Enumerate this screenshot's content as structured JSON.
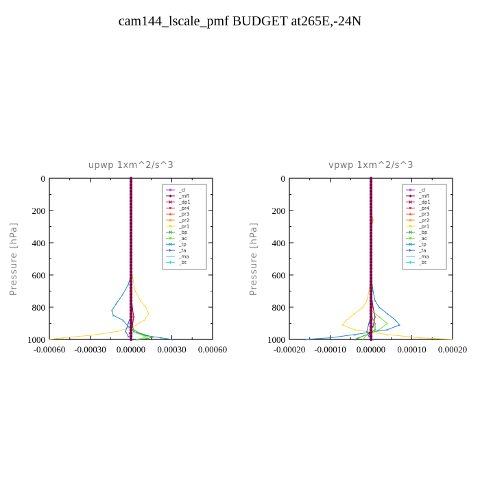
{
  "title": "cam144_lscale_pmf  BUDGET at265E,-24N",
  "colors": {
    "_cl": "#9b59d0",
    "_mfl": "#7a0a4a",
    "_dp1": "#b0004a",
    "_pr4": "#d8305a",
    "_pr3": "#ff5a3c",
    "_pr2": "#ffa020",
    "_pr1": "#ffd23a",
    "_bp": "#30a830",
    "_ac": "#70e040",
    "_tp": "#2288cc",
    "_ta": "#3366dd",
    "_ma": "#44bbdd",
    "_bt": "#22dddd"
  },
  "legend_items": [
    "_cl",
    "_mfl",
    "_dp1",
    "_pr4",
    "_pr3",
    "_pr2",
    "_pr1",
    "_bp",
    "_ac",
    "_tp",
    "_ta",
    "_ma",
    "_bt"
  ],
  "chart_data": [
    {
      "type": "line",
      "title": "upwp   1xm^2/s^3",
      "ylabel": "Pressure  [hPa]",
      "xlim": [
        -0.0006,
        0.0006
      ],
      "ylim": [
        1000,
        0
      ],
      "xticks": [
        "-0.00060",
        "-0.00030",
        "0.00000",
        "0.00030",
        "0.00060"
      ],
      "yticks": [
        "0",
        "200",
        "400",
        "600",
        "800",
        "1000"
      ],
      "legend": "top-right",
      "series": [
        {
          "name": "_pr1",
          "p": [
            600,
            700,
            760,
            800,
            840,
            880,
            920,
            950,
            975,
            990,
            1000
          ],
          "x": [
            1e-05,
            3e-05,
            7e-05,
            0.00011,
            0.00013,
            0.0001,
            2e-05,
            -0.0001,
            -0.0003,
            -0.0005,
            -0.0006
          ]
        },
        {
          "name": "_tp",
          "p": [
            600,
            660,
            720,
            780,
            820,
            850,
            880,
            920,
            950,
            975,
            990,
            1000
          ],
          "x": [
            0,
            -2e-05,
            -6e-05,
            -0.00011,
            -0.00014,
            -0.00013,
            -6e-05,
            -2e-05,
            2e-05,
            0.0001,
            0.00022,
            0.0003
          ]
        },
        {
          "name": "_bp",
          "p": [
            900,
            940,
            960,
            975,
            985,
            995,
            1000
          ],
          "x": [
            0,
            2e-05,
            6e-05,
            0.00012,
            0.00016,
            0.00012,
            5e-05
          ]
        },
        {
          "name": "_ac",
          "p": [
            900,
            940,
            960,
            975,
            985,
            1000
          ],
          "x": [
            0,
            1e-05,
            4e-05,
            9e-05,
            0.00012,
            4e-05
          ]
        },
        {
          "name": "_ta",
          "p": [
            850,
            900,
            950,
            980,
            1000
          ],
          "x": [
            0,
            -2e-05,
            -4e-05,
            -2e-05,
            1e-05
          ]
        },
        {
          "name": "_pr2",
          "p": [
            750,
            850,
            900,
            960,
            1000
          ],
          "x": [
            0,
            1e-05,
            1e-05,
            -1e-05,
            0
          ]
        },
        {
          "name": "_dp1",
          "p": [
            700,
            800,
            860,
            920,
            960,
            1000
          ],
          "x": [
            0,
            1e-05,
            2e-05,
            1e-05,
            -1e-05,
            0
          ]
        }
      ]
    },
    {
      "type": "line",
      "title": "vpwp   1xm^2/s^3",
      "ylabel": "Pressure  [hPa]",
      "xlim": [
        -0.0002,
        0.0002
      ],
      "ylim": [
        1000,
        0
      ],
      "xticks": [
        "-0.00020",
        "-0.00010",
        "0.00000",
        "0.00010",
        "0.00020"
      ],
      "yticks": [
        "0",
        "200",
        "400",
        "600",
        "800",
        "1000"
      ],
      "legend": "top-right",
      "series": [
        {
          "name": "_pr1",
          "p": [
            600,
            700,
            760,
            800,
            840,
            880,
            910,
            940,
            970,
            990,
            1000
          ],
          "x": [
            0,
            -5e-06,
            -1e-05,
            -2e-05,
            -4e-05,
            -6e-05,
            -7e-05,
            -4e-05,
            4e-05,
            0.00012,
            0.0002
          ]
        },
        {
          "name": "_tp",
          "p": [
            600,
            700,
            760,
            800,
            840,
            880,
            910,
            940,
            970,
            990,
            1000
          ],
          "x": [
            0,
            5e-06,
            1e-05,
            2e-05,
            4e-05,
            6e-05,
            7e-05,
            4e-05,
            -4e-05,
            -0.0001,
            -0.00016
          ]
        },
        {
          "name": "_bp",
          "p": [
            850,
            900,
            940,
            970,
            990,
            1000
          ],
          "x": [
            0,
            1e-05,
            1e-05,
            -1e-05,
            -3e-05,
            -4e-05
          ]
        },
        {
          "name": "_ac",
          "p": [
            820,
            860,
            900,
            940,
            970,
            1000
          ],
          "x": [
            0,
            2e-05,
            4e-05,
            2e-05,
            -1e-05,
            -2e-05
          ]
        },
        {
          "name": "_ta",
          "p": [
            850,
            900,
            950,
            980,
            1000
          ],
          "x": [
            0,
            -5e-06,
            -1e-05,
            -5e-06,
            5e-06
          ]
        },
        {
          "name": "_dp1",
          "p": [
            700,
            800,
            860,
            920,
            960,
            1000
          ],
          "x": [
            0,
            5e-06,
            1e-05,
            5e-06,
            -5e-06,
            0
          ]
        },
        {
          "name": "_pr2",
          "p": [
            200,
            260,
            320
          ],
          "x": [
            0,
            5e-06,
            0
          ]
        }
      ]
    }
  ]
}
